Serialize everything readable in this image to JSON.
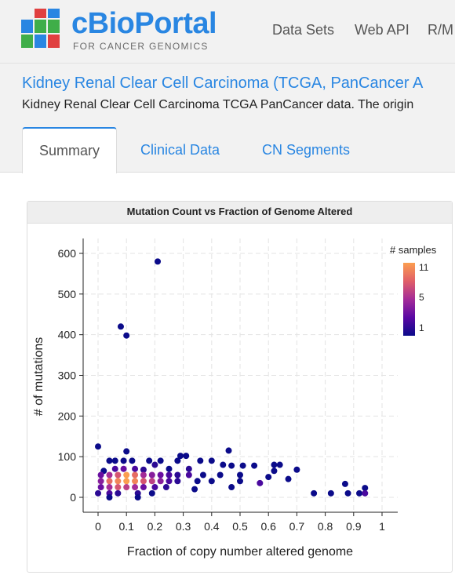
{
  "brand": {
    "title": "cBioPortal",
    "subtitle": "FOR CANCER GENOMICS"
  },
  "nav": {
    "items": [
      "Data Sets",
      "Web API",
      "R/M"
    ]
  },
  "study": {
    "title": "Kidney Renal Clear Cell Carcinoma (TCGA, PanCancer A",
    "description": "Kidney Renal Clear Cell Carcinoma TCGA PanCancer data. The origin"
  },
  "tabs": [
    {
      "label": "Summary",
      "active": true
    },
    {
      "label": "Clinical Data",
      "active": false
    },
    {
      "label": "CN Segments",
      "active": false
    }
  ],
  "chart_card": {
    "title": "Mutation Count vs Fraction of Genome Altered"
  },
  "chart_data": {
    "type": "heatmap",
    "title": "Mutation Count vs Fraction of Genome Altered",
    "xlabel": "Fraction of copy number altered genome",
    "ylabel": "# of mutations",
    "xlim": [
      0,
      1
    ],
    "ylim": [
      0,
      600
    ],
    "x_ticks": [
      "0",
      "0.1",
      "0.2",
      "0.3",
      "0.4",
      "0.5",
      "0.6",
      "0.7",
      "0.8",
      "0.9",
      "1"
    ],
    "y_ticks": [
      "0",
      "100",
      "200",
      "300",
      "400",
      "500",
      "600"
    ],
    "grid": true,
    "legend": {
      "title": "# samples",
      "position": "top-right",
      "min": 1,
      "mid": 5,
      "max": 11,
      "labels": [
        "11",
        "5",
        "1"
      ]
    },
    "colorscale": [
      "#0b0b8a",
      "#5a08a3",
      "#a42c98",
      "#e15f68",
      "#fb9e4f"
    ],
    "points": [
      {
        "x": 0.0,
        "y": 125,
        "n": 1
      },
      {
        "x": 0.21,
        "y": 580,
        "n": 1
      },
      {
        "x": 0.08,
        "y": 420,
        "n": 1
      },
      {
        "x": 0.1,
        "y": 398,
        "n": 1
      },
      {
        "x": 0.46,
        "y": 115,
        "n": 1
      },
      {
        "x": 0.1,
        "y": 113,
        "n": 1
      },
      {
        "x": 0.29,
        "y": 102,
        "n": 1
      },
      {
        "x": 0.31,
        "y": 102,
        "n": 1
      },
      {
        "x": 0.04,
        "y": 90,
        "n": 1
      },
      {
        "x": 0.06,
        "y": 90,
        "n": 1
      },
      {
        "x": 0.09,
        "y": 90,
        "n": 1
      },
      {
        "x": 0.12,
        "y": 90,
        "n": 1
      },
      {
        "x": 0.18,
        "y": 90,
        "n": 1
      },
      {
        "x": 0.22,
        "y": 90,
        "n": 1
      },
      {
        "x": 0.28,
        "y": 90,
        "n": 1
      },
      {
        "x": 0.36,
        "y": 90,
        "n": 1
      },
      {
        "x": 0.4,
        "y": 90,
        "n": 1
      },
      {
        "x": 0.2,
        "y": 80,
        "n": 2
      },
      {
        "x": 0.44,
        "y": 80,
        "n": 1
      },
      {
        "x": 0.47,
        "y": 78,
        "n": 1
      },
      {
        "x": 0.51,
        "y": 78,
        "n": 1
      },
      {
        "x": 0.55,
        "y": 78,
        "n": 1
      },
      {
        "x": 0.62,
        "y": 80,
        "n": 1
      },
      {
        "x": 0.64,
        "y": 80,
        "n": 1
      },
      {
        "x": 0.7,
        "y": 68,
        "n": 1
      },
      {
        "x": 0.02,
        "y": 65,
        "n": 1
      },
      {
        "x": 0.06,
        "y": 70,
        "n": 3
      },
      {
        "x": 0.09,
        "y": 70,
        "n": 4
      },
      {
        "x": 0.13,
        "y": 70,
        "n": 3
      },
      {
        "x": 0.16,
        "y": 68,
        "n": 2
      },
      {
        "x": 0.25,
        "y": 70,
        "n": 1
      },
      {
        "x": 0.32,
        "y": 70,
        "n": 2
      },
      {
        "x": 0.62,
        "y": 65,
        "n": 1
      },
      {
        "x": 0.01,
        "y": 55,
        "n": 4
      },
      {
        "x": 0.04,
        "y": 55,
        "n": 6
      },
      {
        "x": 0.07,
        "y": 55,
        "n": 8
      },
      {
        "x": 0.1,
        "y": 55,
        "n": 11
      },
      {
        "x": 0.13,
        "y": 55,
        "n": 9
      },
      {
        "x": 0.16,
        "y": 55,
        "n": 6
      },
      {
        "x": 0.19,
        "y": 55,
        "n": 5
      },
      {
        "x": 0.22,
        "y": 55,
        "n": 4
      },
      {
        "x": 0.25,
        "y": 55,
        "n": 3
      },
      {
        "x": 0.28,
        "y": 55,
        "n": 2
      },
      {
        "x": 0.32,
        "y": 55,
        "n": 3
      },
      {
        "x": 0.37,
        "y": 55,
        "n": 1
      },
      {
        "x": 0.43,
        "y": 55,
        "n": 1
      },
      {
        "x": 0.5,
        "y": 55,
        "n": 1
      },
      {
        "x": 0.6,
        "y": 50,
        "n": 1
      },
      {
        "x": 0.67,
        "y": 45,
        "n": 1
      },
      {
        "x": 0.01,
        "y": 40,
        "n": 5
      },
      {
        "x": 0.04,
        "y": 40,
        "n": 9
      },
      {
        "x": 0.07,
        "y": 40,
        "n": 10
      },
      {
        "x": 0.1,
        "y": 40,
        "n": 11
      },
      {
        "x": 0.13,
        "y": 40,
        "n": 10
      },
      {
        "x": 0.16,
        "y": 40,
        "n": 8
      },
      {
        "x": 0.19,
        "y": 40,
        "n": 7
      },
      {
        "x": 0.22,
        "y": 40,
        "n": 5
      },
      {
        "x": 0.25,
        "y": 40,
        "n": 3
      },
      {
        "x": 0.28,
        "y": 40,
        "n": 2
      },
      {
        "x": 0.35,
        "y": 40,
        "n": 1
      },
      {
        "x": 0.4,
        "y": 40,
        "n": 1
      },
      {
        "x": 0.5,
        "y": 40,
        "n": 1
      },
      {
        "x": 0.57,
        "y": 35,
        "n": 3
      },
      {
        "x": 0.87,
        "y": 33,
        "n": 1
      },
      {
        "x": 0.01,
        "y": 25,
        "n": 4
      },
      {
        "x": 0.04,
        "y": 25,
        "n": 6
      },
      {
        "x": 0.07,
        "y": 25,
        "n": 8
      },
      {
        "x": 0.1,
        "y": 25,
        "n": 7
      },
      {
        "x": 0.13,
        "y": 25,
        "n": 6
      },
      {
        "x": 0.16,
        "y": 25,
        "n": 4
      },
      {
        "x": 0.2,
        "y": 25,
        "n": 3
      },
      {
        "x": 0.24,
        "y": 25,
        "n": 2
      },
      {
        "x": 0.34,
        "y": 20,
        "n": 1
      },
      {
        "x": 0.47,
        "y": 25,
        "n": 1
      },
      {
        "x": 0.94,
        "y": 23,
        "n": 1
      },
      {
        "x": 0.0,
        "y": 10,
        "n": 2
      },
      {
        "x": 0.04,
        "y": 10,
        "n": 3
      },
      {
        "x": 0.07,
        "y": 10,
        "n": 2
      },
      {
        "x": 0.14,
        "y": 10,
        "n": 2
      },
      {
        "x": 0.19,
        "y": 10,
        "n": 1
      },
      {
        "x": 0.76,
        "y": 10,
        "n": 1
      },
      {
        "x": 0.82,
        "y": 10,
        "n": 1
      },
      {
        "x": 0.88,
        "y": 10,
        "n": 1
      },
      {
        "x": 0.92,
        "y": 10,
        "n": 1
      },
      {
        "x": 0.94,
        "y": 10,
        "n": 3
      },
      {
        "x": 0.04,
        "y": 0,
        "n": 1
      },
      {
        "x": 0.14,
        "y": 0,
        "n": 1
      }
    ]
  }
}
